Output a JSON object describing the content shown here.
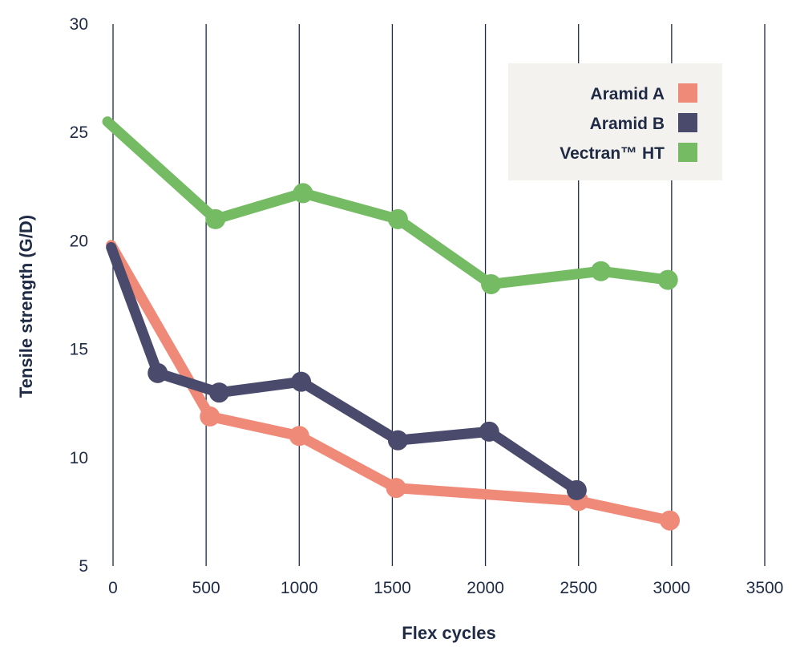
{
  "chart_data": {
    "type": "line",
    "title": "",
    "xlabel": "Flex cycles",
    "ylabel": "Tensile strength (G/D)",
    "xlim": [
      0,
      3500
    ],
    "ylim": [
      5,
      30
    ],
    "x_ticks": [
      0,
      500,
      1000,
      1500,
      2000,
      2500,
      3000,
      3500
    ],
    "y_ticks": [
      5,
      10,
      15,
      20,
      25,
      30
    ],
    "vertical_grid": true,
    "horizontal_grid": false,
    "legend_position": "top-right",
    "series": [
      {
        "name": "Aramid A",
        "color": "#f08a78",
        "points": [
          [
            -10,
            19.8
          ],
          [
            520,
            11.9
          ],
          [
            1000,
            11.0
          ],
          [
            1520,
            8.6
          ],
          [
            2500,
            8.0
          ],
          [
            2990,
            7.1
          ]
        ],
        "markers_from": 1
      },
      {
        "name": "Aramid B",
        "color": "#4a4a6c",
        "points": [
          [
            -10,
            19.7
          ],
          [
            240,
            13.9
          ],
          [
            570,
            13.0
          ],
          [
            1010,
            13.5
          ],
          [
            1530,
            10.8
          ],
          [
            2020,
            11.2
          ],
          [
            2490,
            8.5
          ]
        ],
        "markers_from": 1
      },
      {
        "name": "Vectran™ HT",
        "color": "#74bb64",
        "points": [
          [
            -30,
            25.5
          ],
          [
            550,
            21.0
          ],
          [
            1020,
            22.2
          ],
          [
            1530,
            21.0
          ],
          [
            2030,
            18.0
          ],
          [
            2620,
            18.6
          ],
          [
            2980,
            18.2
          ]
        ],
        "markers_from": 1
      }
    ]
  }
}
